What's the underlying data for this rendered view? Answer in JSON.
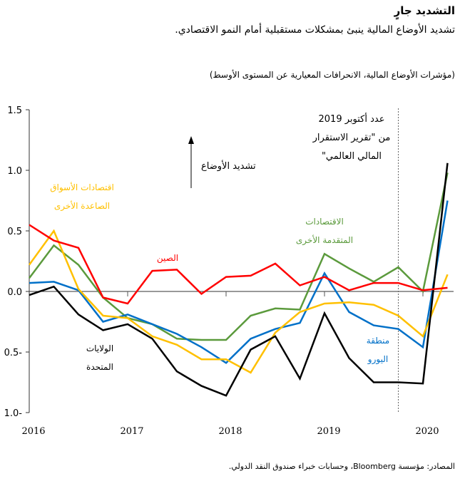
{
  "title": "التشديد جارٍ",
  "subtitle": "تشديد الأوضاع المالية ينبئ بمشكلات مستقبلية أمام النمو الاقتصادي.",
  "unit_note": "(مؤشرات الأوضاع المالية، الانحرافات المعيارية عن المستوى الأوسط)",
  "source": "المصادر: مؤسسة Bloomberg، وحسابات خبراء صندوق النقد الدولي.",
  "annotations": {
    "tightening": "تشديد الأوضاع",
    "gfsr_line1": "عدد أكتوبر 2019",
    "gfsr_line2": "من \"تقرير الاستقرار",
    "gfsr_line3": "المالي العالمي\""
  },
  "chart_data": {
    "type": "line",
    "ylim": [
      -1.0,
      1.5
    ],
    "yticks": [
      "1.5",
      "1.0",
      "0.5",
      "0.0",
      "0.5-",
      "1.0-"
    ],
    "xticks": [
      "2016",
      "2017",
      "2018",
      "2019",
      "2020"
    ],
    "x": [
      "2016Q1",
      "2016Q2",
      "2016Q3",
      "2016Q4",
      "2017Q1",
      "2017Q2",
      "2017Q3",
      "2017Q4",
      "2018Q1",
      "2018Q2",
      "2018Q3",
      "2018Q4",
      "2019Q1",
      "2019Q2",
      "2019Q3",
      "2019Q4",
      "2020Q1",
      "2020Q2"
    ],
    "marker_line": "2019Q4",
    "series": [
      {
        "name": "الصين",
        "name2": "",
        "color": "#ff0000",
        "values": [
          0.55,
          0.42,
          0.36,
          -0.05,
          -0.1,
          0.17,
          0.18,
          -0.02,
          0.12,
          0.13,
          0.23,
          0.05,
          0.12,
          0.01,
          0.07,
          0.07,
          0.01,
          0.03
        ]
      },
      {
        "name": "الاقتصادات",
        "name2": "المتقدمة الأخرى",
        "color": "#5b9a3c",
        "values": [
          0.11,
          0.38,
          0.22,
          -0.05,
          -0.22,
          -0.27,
          -0.39,
          -0.4,
          -0.4,
          -0.2,
          -0.14,
          -0.15,
          0.31,
          0.19,
          0.08,
          0.2,
          0.0,
          0.98
        ]
      },
      {
        "name": "منطقة",
        "name2": "اليورو",
        "color": "#0070c8",
        "values": [
          0.07,
          0.08,
          0.01,
          -0.25,
          -0.19,
          -0.27,
          -0.35,
          -0.46,
          -0.59,
          -0.39,
          -0.31,
          -0.26,
          0.15,
          -0.17,
          -0.28,
          -0.31,
          -0.46,
          0.75
        ]
      },
      {
        "name": "اقتصادات الأسواق",
        "name2": "الصاعدة الأخرى",
        "color": "#ffc000",
        "values": [
          0.22,
          0.5,
          0.02,
          -0.2,
          -0.22,
          -0.37,
          -0.44,
          -0.56,
          -0.56,
          -0.67,
          -0.34,
          -0.17,
          -0.1,
          -0.09,
          -0.11,
          -0.2,
          -0.37,
          0.14
        ]
      },
      {
        "name": "الولايات",
        "name2": "المتحدة",
        "color": "#000000",
        "values": [
          -0.03,
          0.04,
          -0.19,
          -0.32,
          -0.27,
          -0.39,
          -0.66,
          -0.78,
          -0.86,
          -0.48,
          -0.37,
          -0.72,
          -0.18,
          -0.55,
          -0.75,
          -0.75,
          -0.76,
          1.06
        ]
      }
    ]
  }
}
